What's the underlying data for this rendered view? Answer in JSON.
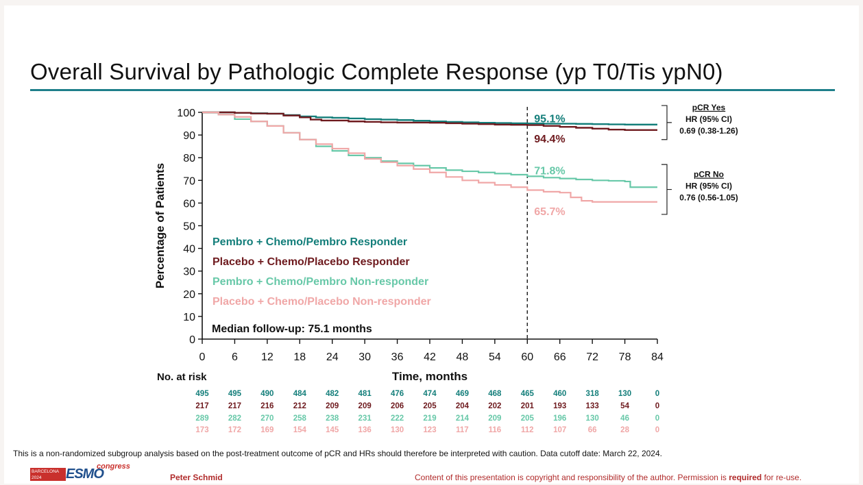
{
  "slide": {
    "title": "Overall Survival by Pathologic Complete Response (yp T0/Tis ypN0)",
    "footnote": "This is a non-randomized subgroup analysis based on the post-treatment outcome of pCR and HRs should therefore be interpreted with caution. Data cutoff date: March 22, 2024.",
    "presenter": "Peter Schmid",
    "copyright_pre": "Content of this presentation is copyright and responsibility of the author. Permission is ",
    "copyright_bold": "required",
    "copyright_post": " for re-use.",
    "logo": {
      "badge_text": "BARCELONA\n2024",
      "brand": "ESMO",
      "suffix": "congress"
    },
    "colors": {
      "accent_rule": "#1e7f8a"
    }
  },
  "chart_data": {
    "type": "line",
    "xlabel": "Time, months",
    "ylabel": "Percentage of Patients",
    "xlim": [
      0,
      84
    ],
    "ylim": [
      0,
      100
    ],
    "x_ticks": [
      0,
      6,
      12,
      18,
      24,
      30,
      36,
      42,
      48,
      54,
      60,
      66,
      72,
      78,
      84
    ],
    "y_ticks": [
      0,
      10,
      20,
      30,
      40,
      50,
      60,
      70,
      80,
      90,
      100
    ],
    "reference_line_x": 60,
    "median_followup": "Median follow-up: 75.1 months",
    "series": [
      {
        "name": "Pembro + Chemo/Pembro Responder",
        "color": "#137e7a",
        "x": [
          0,
          3,
          6,
          9,
          12,
          15,
          18,
          21,
          24,
          27,
          30,
          33,
          36,
          39,
          42,
          45,
          48,
          51,
          54,
          57,
          60,
          63,
          66,
          69,
          72,
          75,
          78,
          81,
          84
        ],
        "y": [
          100,
          100,
          99.8,
          99.6,
          99.4,
          98.8,
          98.2,
          97.8,
          97.6,
          97.3,
          97.0,
          96.8,
          96.6,
          96.3,
          96.0,
          95.8,
          95.6,
          95.4,
          95.3,
          95.2,
          95.1,
          95.0,
          95.0,
          94.9,
          94.8,
          94.7,
          94.6,
          94.6,
          94.6
        ],
        "label_at_60": "95.1%"
      },
      {
        "name": "Placebo + Chemo/Placebo Responder",
        "color": "#6e1a1e",
        "x": [
          0,
          3,
          6,
          9,
          12,
          15,
          18,
          20,
          22,
          24,
          27,
          30,
          33,
          36,
          39,
          42,
          45,
          48,
          51,
          54,
          57,
          60,
          63,
          66,
          69,
          72,
          75,
          78,
          81,
          84
        ],
        "y": [
          100,
          100,
          99.8,
          99.5,
          99.4,
          98.6,
          97.8,
          96.8,
          96.4,
          96.4,
          96.0,
          95.8,
          95.6,
          95.5,
          95.5,
          95.4,
          95.2,
          95.0,
          94.8,
          94.6,
          94.5,
          94.4,
          94.0,
          93.6,
          93.2,
          92.8,
          92.4,
          92.2,
          92.2,
          92.2
        ],
        "label_at_60": "94.4%"
      },
      {
        "name": "Pembro + Chemo/Pembro Non-responder",
        "color": "#67c8a8",
        "x": [
          0,
          3,
          6,
          9,
          12,
          15,
          18,
          21,
          24,
          27,
          30,
          33,
          36,
          39,
          42,
          45,
          48,
          51,
          54,
          57,
          60,
          63,
          66,
          69,
          72,
          75,
          78,
          79,
          81,
          84
        ],
        "y": [
          100,
          99,
          97,
          96,
          94,
          91,
          88,
          85,
          83,
          81,
          80,
          78.5,
          77.5,
          76.5,
          75.5,
          74.5,
          74,
          73.5,
          73,
          72.5,
          71.8,
          71.2,
          70.8,
          70.4,
          70.0,
          69.8,
          69.5,
          67,
          67,
          67
        ]
      },
      {
        "name": "Placebo + Chemo/Placebo Non-responder",
        "color": "#f0a7a7",
        "x": [
          0,
          3,
          6,
          9,
          12,
          15,
          18,
          21,
          24,
          27,
          30,
          33,
          36,
          39,
          42,
          45,
          48,
          51,
          54,
          57,
          60,
          63,
          66,
          68,
          70,
          72,
          75,
          78,
          81,
          84
        ],
        "y": [
          100,
          99,
          98,
          96,
          94,
          91,
          88,
          86,
          84,
          82,
          79.5,
          78,
          76.5,
          75,
          73.5,
          71.5,
          70,
          69,
          68,
          67,
          65.7,
          65,
          64.6,
          62.5,
          61,
          60.5,
          60.5,
          60.5,
          60.5,
          60.5
        ]
      }
    ],
    "value_labels": [
      {
        "text": "95.1%",
        "x": 60,
        "y": 97.5,
        "color": "#137e7a"
      },
      {
        "text": "94.4%",
        "x": 60,
        "y": 88.5,
        "color": "#6e1a1e"
      },
      {
        "text": "71.8%",
        "x": 60,
        "y": 74.5,
        "color": "#67c8a8"
      },
      {
        "text": "65.7%",
        "x": 60,
        "y": 56.5,
        "color": "#f0a7a7"
      }
    ],
    "hazard_ratios": [
      {
        "group": "pCR Yes",
        "hr_label": "HR (95% CI)",
        "value": "0.69 (0.38-1.26)",
        "y_range": [
          88,
          103
        ]
      },
      {
        "group": "pCR No",
        "hr_label": "HR (95% CI)",
        "value": "0.76 (0.56-1.05)",
        "y_range": [
          55,
          77
        ]
      }
    ],
    "legend_position": "lower-left inside plot",
    "no_at_risk": {
      "label": "No. at risk",
      "rows": [
        {
          "color": "#137e7a",
          "values": [
            "495",
            "495",
            "490",
            "484",
            "482",
            "481",
            "476",
            "474",
            "469",
            "468",
            "465",
            "460",
            "318",
            "130",
            "0"
          ]
        },
        {
          "color": "#6e1a1e",
          "values": [
            "217",
            "217",
            "216",
            "212",
            "209",
            "209",
            "206",
            "205",
            "204",
            "202",
            "201",
            "193",
            "133",
            "54",
            "0"
          ]
        },
        {
          "color": "#67c8a8",
          "values": [
            "289",
            "282",
            "270",
            "258",
            "238",
            "231",
            "222",
            "219",
            "214",
            "209",
            "205",
            "196",
            "130",
            "46",
            "0"
          ]
        },
        {
          "color": "#f0a7a7",
          "values": [
            "173",
            "172",
            "169",
            "154",
            "145",
            "136",
            "130",
            "123",
            "117",
            "116",
            "112",
            "107",
            "66",
            "28",
            "0"
          ]
        }
      ]
    }
  }
}
